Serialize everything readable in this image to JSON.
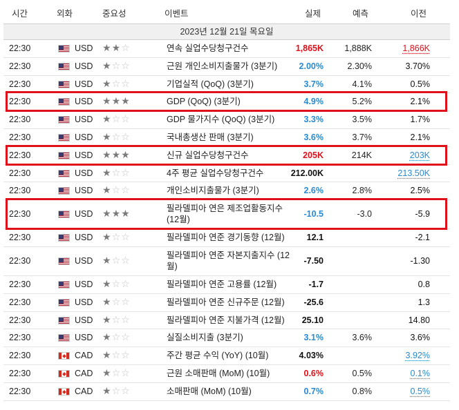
{
  "header": {
    "time": "시간",
    "currency": "외화",
    "importance": "중요성",
    "event": "이벤트",
    "actual": "실제",
    "forecast": "예측",
    "previous": "이전"
  },
  "date_label": "2023년 12월 21일 목요일",
  "colors": {
    "positive": "#2a8ad0",
    "negative": "#e0101a",
    "highlight": "#e0101a",
    "neutral": "#111111"
  },
  "rows": [
    {
      "time": "22:30",
      "flag": "us-flag-icon",
      "currency": "USD",
      "stars": 2,
      "event": "연속 실업수당청구건수",
      "actual": "1,865K",
      "actual_tone": "neg",
      "forecast": "1,888K",
      "previous": "1,866K",
      "prev_tone": "neg",
      "prev_revised": true,
      "lines": 1
    },
    {
      "time": "22:30",
      "flag": "us-flag-icon",
      "currency": "USD",
      "stars": 1,
      "event": "근원 개인소비지출물가 (3분기)",
      "actual": "2.00%",
      "actual_tone": "pos",
      "forecast": "2.30%",
      "previous": "3.70%",
      "prev_tone": "neu",
      "prev_revised": false,
      "lines": 1
    },
    {
      "time": "22:30",
      "flag": "us-flag-icon",
      "currency": "USD",
      "stars": 1,
      "event": "기업실적 (QoQ) (3분기)",
      "actual": "3.7%",
      "actual_tone": "pos",
      "forecast": "4.1%",
      "previous": "0.5%",
      "prev_tone": "neu",
      "prev_revised": false,
      "lines": 1
    },
    {
      "time": "22:30",
      "flag": "us-flag-icon",
      "currency": "USD",
      "stars": 3,
      "event": "GDP (QoQ) (3분기)",
      "actual": "4.9%",
      "actual_tone": "pos",
      "forecast": "5.2%",
      "previous": "2.1%",
      "prev_tone": "neu",
      "prev_revised": false,
      "lines": 1,
      "highlight": true
    },
    {
      "time": "22:30",
      "flag": "us-flag-icon",
      "currency": "USD",
      "stars": 1,
      "event": "GDP 물가지수 (QoQ) (3분기)",
      "actual": "3.3%",
      "actual_tone": "pos",
      "forecast": "3.5%",
      "previous": "1.7%",
      "prev_tone": "neu",
      "prev_revised": false,
      "lines": 1
    },
    {
      "time": "22:30",
      "flag": "us-flag-icon",
      "currency": "USD",
      "stars": 1,
      "event": "국내총생산 판매 (3분기)",
      "actual": "3.6%",
      "actual_tone": "pos",
      "forecast": "3.7%",
      "previous": "2.1%",
      "prev_tone": "neu",
      "prev_revised": false,
      "lines": 1
    },
    {
      "time": "22:30",
      "flag": "us-flag-icon",
      "currency": "USD",
      "stars": 3,
      "event": "신규 실업수당청구건수",
      "actual": "205K",
      "actual_tone": "neg",
      "forecast": "214K",
      "previous": "203K",
      "prev_tone": "pos",
      "prev_revised": true,
      "lines": 1,
      "highlight": true
    },
    {
      "time": "22:30",
      "flag": "us-flag-icon",
      "currency": "USD",
      "stars": 1,
      "event": "4주 평균 실업수당청구건수",
      "actual": "212.00K",
      "actual_tone": "neu",
      "forecast": "",
      "previous": "213.50K",
      "prev_tone": "pos",
      "prev_revised": true,
      "lines": 1
    },
    {
      "time": "22:30",
      "flag": "us-flag-icon",
      "currency": "USD",
      "stars": 1,
      "event": "개인소비지출물가 (3분기)",
      "actual": "2.6%",
      "actual_tone": "pos",
      "forecast": "2.8%",
      "previous": "2.5%",
      "prev_tone": "neu",
      "prev_revised": false,
      "lines": 1
    },
    {
      "time": "22:30",
      "flag": "us-flag-icon",
      "currency": "USD",
      "stars": 3,
      "event": "필라델피아 연은 제조업활동지수 (12월)",
      "actual": "-10.5",
      "actual_tone": "pos",
      "forecast": "-3.0",
      "previous": "-5.9",
      "prev_tone": "neu",
      "prev_revised": false,
      "lines": 2,
      "highlight": true
    },
    {
      "time": "22:30",
      "flag": "us-flag-icon",
      "currency": "USD",
      "stars": 1,
      "event": "필라델피아 연준 경기동향 (12월)",
      "actual": "12.1",
      "actual_tone": "neu",
      "forecast": "",
      "previous": "-2.1",
      "prev_tone": "neu",
      "prev_revised": false,
      "lines": 1
    },
    {
      "time": "22:30",
      "flag": "us-flag-icon",
      "currency": "USD",
      "stars": 1,
      "event": "필라델피아 연준 자본지출지수 (12월)",
      "actual": "-7.50",
      "actual_tone": "neu",
      "forecast": "",
      "previous": "-1.30",
      "prev_tone": "neu",
      "prev_revised": false,
      "lines": 2
    },
    {
      "time": "22:30",
      "flag": "us-flag-icon",
      "currency": "USD",
      "stars": 1,
      "event": "필라델피아 연준 고용률 (12월)",
      "actual": "-1.7",
      "actual_tone": "neu",
      "forecast": "",
      "previous": "0.8",
      "prev_tone": "neu",
      "prev_revised": false,
      "lines": 1
    },
    {
      "time": "22:30",
      "flag": "us-flag-icon",
      "currency": "USD",
      "stars": 1,
      "event": "필라델피아 연준 신규주문 (12월)",
      "actual": "-25.6",
      "actual_tone": "neu",
      "forecast": "",
      "previous": "1.3",
      "prev_tone": "neu",
      "prev_revised": false,
      "lines": 1
    },
    {
      "time": "22:30",
      "flag": "us-flag-icon",
      "currency": "USD",
      "stars": 1,
      "event": "필라델피아 연준 지불가격 (12월)",
      "actual": "25.10",
      "actual_tone": "neu",
      "forecast": "",
      "previous": "14.80",
      "prev_tone": "neu",
      "prev_revised": false,
      "lines": 1
    },
    {
      "time": "22:30",
      "flag": "us-flag-icon",
      "currency": "USD",
      "stars": 1,
      "event": "실질소비지출 (3분기)",
      "actual": "3.1%",
      "actual_tone": "pos",
      "forecast": "3.6%",
      "previous": "3.6%",
      "prev_tone": "neu",
      "prev_revised": false,
      "lines": 1
    },
    {
      "time": "22:30",
      "flag": "ca-flag-icon",
      "currency": "CAD",
      "stars": 1,
      "event": "주간 평균 수익 (YoY) (10월)",
      "actual": "4.03%",
      "actual_tone": "neu",
      "forecast": "",
      "previous": "3.92%",
      "prev_tone": "pos",
      "prev_revised": true,
      "lines": 1
    },
    {
      "time": "22:30",
      "flag": "ca-flag-icon",
      "currency": "CAD",
      "stars": 1,
      "event": "근원 소매판매 (MoM) (10월)",
      "actual": "0.6%",
      "actual_tone": "neg",
      "forecast": "0.5%",
      "previous": "0.1%",
      "prev_tone": "pos",
      "prev_revised": true,
      "lines": 1
    },
    {
      "time": "22:30",
      "flag": "ca-flag-icon",
      "currency": "CAD",
      "stars": 1,
      "event": "소매판매 (MoM) (10월)",
      "actual": "0.7%",
      "actual_tone": "pos",
      "forecast": "0.8%",
      "previous": "0.5%",
      "prev_tone": "pos",
      "prev_revised": true,
      "lines": 1
    }
  ]
}
